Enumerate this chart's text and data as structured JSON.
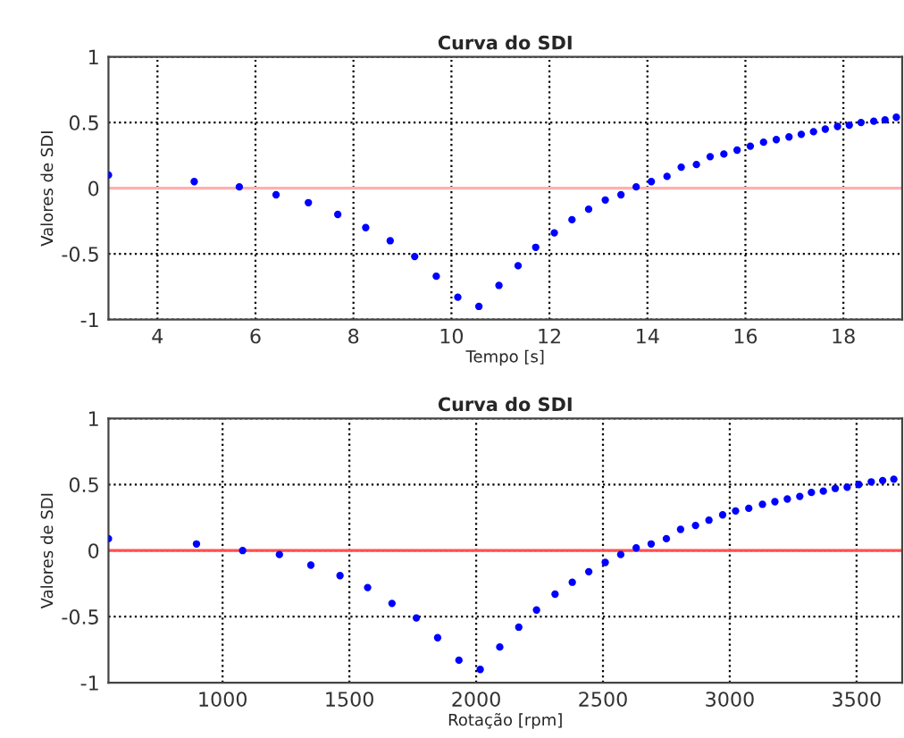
{
  "chart_data": [
    {
      "type": "scatter",
      "title": "Curva do SDI",
      "xlabel": "Tempo [s]",
      "ylabel": "Valores de SDI",
      "x": [
        3.0,
        4.75,
        5.67,
        6.42,
        7.08,
        7.68,
        8.25,
        8.75,
        9.25,
        9.69,
        10.13,
        10.56,
        10.97,
        11.36,
        11.72,
        12.1,
        12.46,
        12.8,
        13.14,
        13.46,
        13.77,
        14.08,
        14.4,
        14.69,
        15.0,
        15.28,
        15.56,
        15.83,
        16.1,
        16.37,
        16.63,
        16.89,
        17.14,
        17.39,
        17.63,
        17.88,
        18.12,
        18.36,
        18.62,
        18.85,
        19.08
      ],
      "series": [
        {
          "color": "#0000ff",
          "values": [
            0.1,
            0.05,
            0.01,
            -0.05,
            -0.11,
            -0.2,
            -0.3,
            -0.4,
            -0.52,
            -0.67,
            -0.83,
            -0.9,
            -0.74,
            -0.59,
            -0.45,
            -0.34,
            -0.24,
            -0.16,
            -0.09,
            -0.05,
            0.01,
            0.05,
            0.09,
            0.16,
            0.18,
            0.24,
            0.26,
            0.29,
            0.32,
            0.35,
            0.37,
            0.39,
            0.41,
            0.43,
            0.45,
            0.47,
            0.48,
            0.5,
            0.51,
            0.52,
            0.54
          ]
        }
      ],
      "xlim": [
        3,
        19.2
      ],
      "ylim": [
        -1,
        1
      ],
      "xticks": [
        4,
        6,
        8,
        10,
        12,
        14,
        16,
        18
      ],
      "yticks": [
        -1,
        -0.5,
        0,
        0.5,
        1
      ],
      "ref_lines": [
        {
          "axis": "y",
          "value": 0,
          "color": "#ffb0b0"
        }
      ],
      "grid": true,
      "marker": "circle",
      "legend": false
    },
    {
      "type": "scatter",
      "title": "Curva do SDI",
      "xlabel": "Rotação [rpm]",
      "ylabel": "Valores de SDI",
      "x": [
        550,
        897,
        1079,
        1224,
        1348,
        1463,
        1572,
        1668,
        1764,
        1848,
        1932,
        2016,
        2093,
        2168,
        2238,
        2311,
        2379,
        2444,
        2509,
        2570,
        2631,
        2690,
        2750,
        2806,
        2865,
        2918,
        2972,
        3023,
        3075,
        3129,
        3178,
        3227,
        3276,
        3322,
        3369,
        3416,
        3463,
        3509,
        3558,
        3603,
        3647
      ],
      "series": [
        {
          "color": "#0000ff",
          "values": [
            0.09,
            0.05,
            0.0,
            -0.03,
            -0.11,
            -0.19,
            -0.28,
            -0.4,
            -0.51,
            -0.66,
            -0.83,
            -0.9,
            -0.73,
            -0.58,
            -0.45,
            -0.33,
            -0.24,
            -0.16,
            -0.09,
            -0.03,
            0.02,
            0.05,
            0.09,
            0.16,
            0.19,
            0.23,
            0.27,
            0.3,
            0.32,
            0.35,
            0.37,
            0.39,
            0.41,
            0.44,
            0.45,
            0.47,
            0.48,
            0.5,
            0.52,
            0.53,
            0.54
          ]
        }
      ],
      "xlim": [
        550,
        3680
      ],
      "ylim": [
        -1,
        1
      ],
      "xticks": [
        1000,
        1500,
        2000,
        2500,
        3000,
        3500
      ],
      "yticks": [
        -1,
        -0.5,
        0,
        0.5,
        1
      ],
      "ref_lines": [
        {
          "axis": "y",
          "value": 0,
          "color": "#ff5050"
        }
      ],
      "grid": true,
      "marker": "circle",
      "legend": false
    }
  ]
}
